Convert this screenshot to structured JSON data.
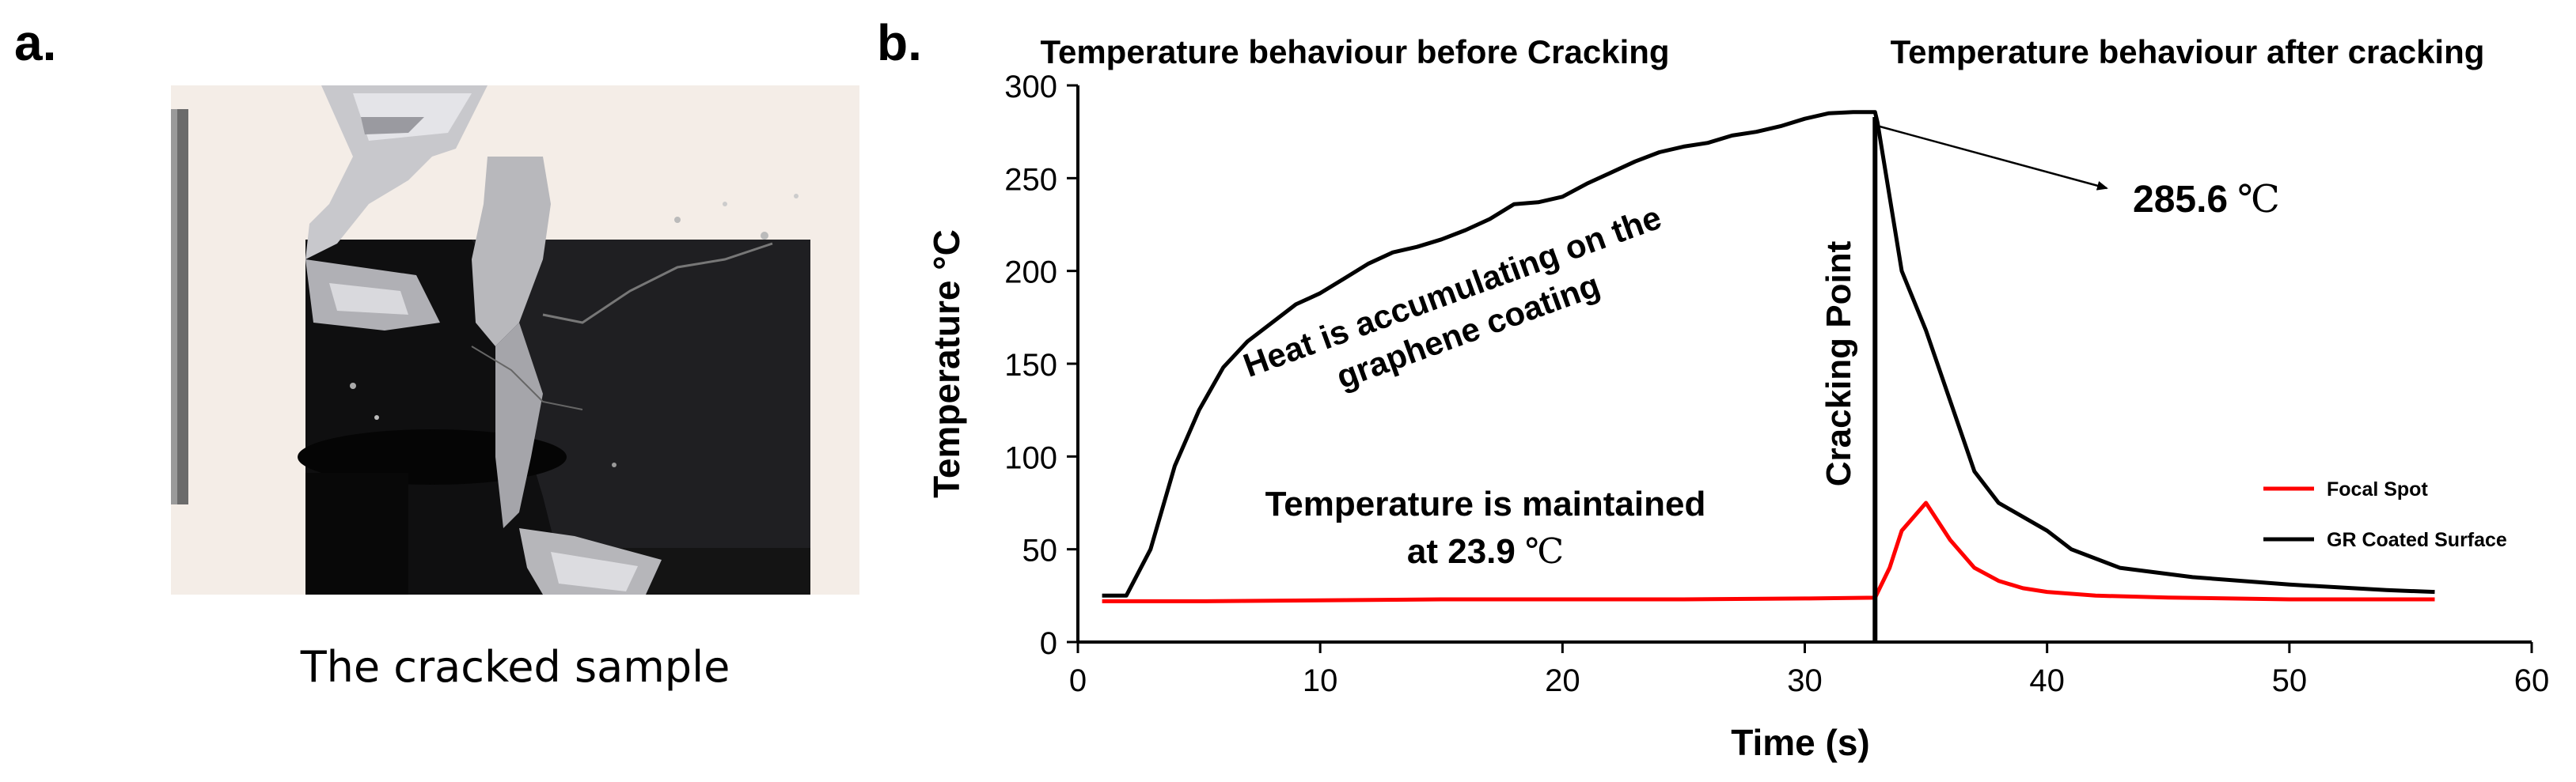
{
  "panel_labels": {
    "a": "a.",
    "b": "b."
  },
  "photo": {
    "caption": "The cracked sample"
  },
  "chart_data": {
    "type": "line",
    "title_before": "Temperature behaviour before Cracking",
    "title_after": "Temperature behaviour after cracking",
    "xlabel": "Time (s)",
    "ylabel": "Temperature °C",
    "xlim": [
      0,
      60
    ],
    "ylim": [
      0,
      300
    ],
    "xticks": [
      0,
      10,
      20,
      30,
      40,
      50,
      60
    ],
    "yticks": [
      0,
      50,
      100,
      150,
      200,
      250,
      300
    ],
    "series": [
      {
        "name": "Focal Spot",
        "color": "#ff0000",
        "points": [
          [
            1,
            22
          ],
          [
            5,
            22
          ],
          [
            10,
            22.5
          ],
          [
            15,
            23
          ],
          [
            20,
            23
          ],
          [
            25,
            23
          ],
          [
            30,
            23.5
          ],
          [
            32.9,
            23.9
          ],
          [
            33.5,
            40
          ],
          [
            34,
            60
          ],
          [
            35,
            75
          ],
          [
            36,
            55
          ],
          [
            37,
            40
          ],
          [
            38,
            33
          ],
          [
            39,
            29
          ],
          [
            40,
            27
          ],
          [
            42,
            25
          ],
          [
            45,
            24
          ],
          [
            50,
            23
          ],
          [
            56,
            23
          ]
        ]
      },
      {
        "name": "GR Coated Surface",
        "color": "#000000",
        "points": [
          [
            1,
            25
          ],
          [
            2,
            25
          ],
          [
            3,
            50
          ],
          [
            4,
            95
          ],
          [
            5,
            125
          ],
          [
            6,
            148
          ],
          [
            7,
            162
          ],
          [
            8,
            172
          ],
          [
            9,
            182
          ],
          [
            10,
            188
          ],
          [
            11,
            196
          ],
          [
            12,
            204
          ],
          [
            13,
            210
          ],
          [
            14,
            213
          ],
          [
            15,
            217
          ],
          [
            16,
            222
          ],
          [
            17,
            228
          ],
          [
            18,
            236
          ],
          [
            19,
            237
          ],
          [
            20,
            240
          ],
          [
            21,
            247
          ],
          [
            22,
            253
          ],
          [
            23,
            259
          ],
          [
            24,
            264
          ],
          [
            25,
            267
          ],
          [
            26,
            269
          ],
          [
            27,
            273
          ],
          [
            28,
            275
          ],
          [
            29,
            278
          ],
          [
            30,
            282
          ],
          [
            31,
            285
          ],
          [
            32,
            285.6
          ],
          [
            32.9,
            285.6
          ],
          [
            33,
            280
          ],
          [
            34,
            200
          ],
          [
            35,
            168
          ],
          [
            36,
            130
          ],
          [
            37,
            92
          ],
          [
            38,
            75
          ],
          [
            40,
            60
          ],
          [
            41,
            50
          ],
          [
            43,
            40
          ],
          [
            46,
            35
          ],
          [
            50,
            31
          ],
          [
            54,
            28
          ],
          [
            56,
            27
          ]
        ]
      }
    ],
    "annotations": {
      "peak_value": "285.6",
      "peak_unit": "℃",
      "maintained_line1": "Temperature is maintained",
      "maintained_line2_prefix": "at 23.9",
      "maintained_unit": "℃",
      "heat_line1": "Heat is accumulating on the",
      "heat_line2": "graphene coating",
      "cracking_point": "Cracking Point",
      "cracking_time": 32.9
    },
    "legend": {
      "position": "right"
    }
  }
}
